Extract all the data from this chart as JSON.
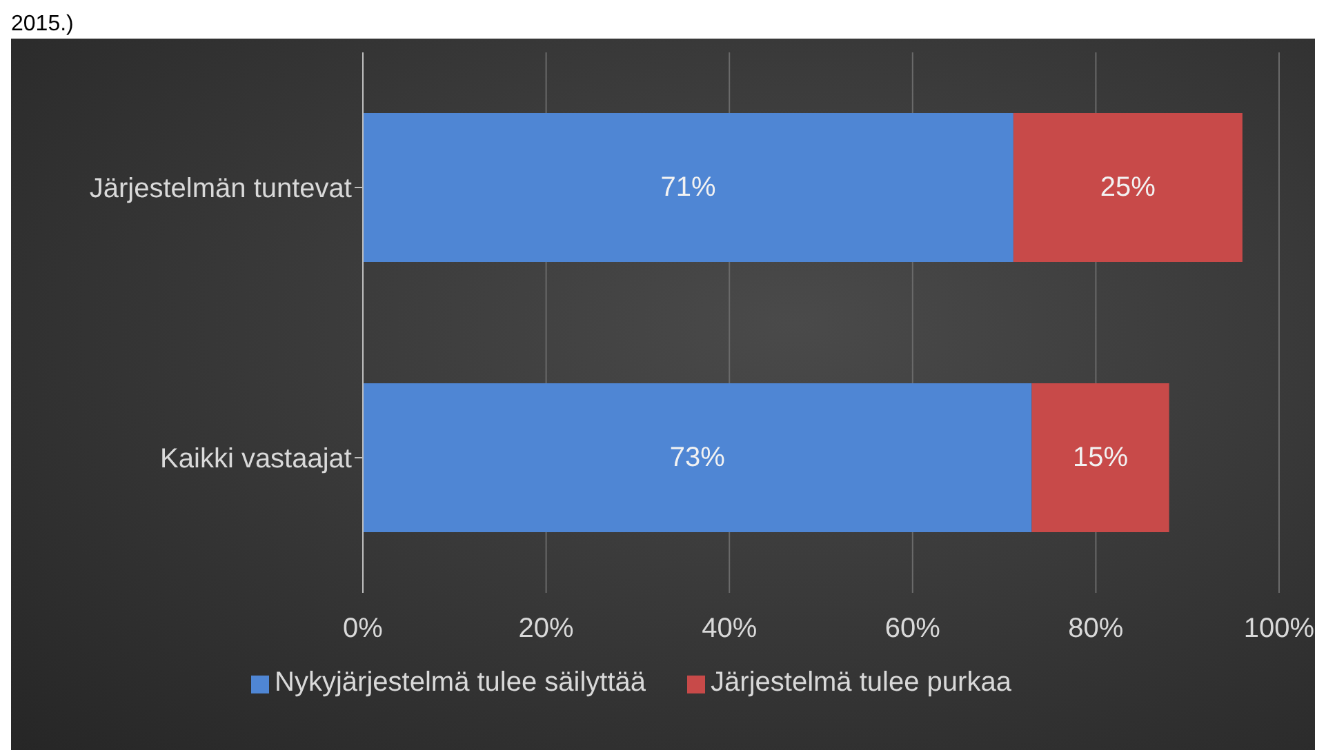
{
  "chart_data": {
    "type": "bar",
    "orientation": "horizontal",
    "stacked": true,
    "categories": [
      "Järjestelmän tuntevat",
      "Kaikki vastaajat"
    ],
    "series": [
      {
        "name": "Nykyjärjestelmä tulee säilyttää",
        "color": "#4f86d4",
        "values": [
          71,
          73
        ],
        "value_labels": [
          "71%",
          "73%"
        ]
      },
      {
        "name": "Järjestelmä tulee purkaa",
        "color": "#c84a49",
        "values": [
          25,
          15
        ],
        "value_labels": [
          "25%",
          "15%"
        ]
      }
    ],
    "xlim": [
      0,
      100
    ],
    "xticks": [
      {
        "value": 0,
        "label": "0%"
      },
      {
        "value": 20,
        "label": "20%"
      },
      {
        "value": 40,
        "label": "40%"
      },
      {
        "value": 60,
        "label": "60%"
      },
      {
        "value": 80,
        "label": "80%"
      },
      {
        "value": 100,
        "label": "100%"
      }
    ],
    "grid": "x",
    "legend": "bottom",
    "annotations": [
      "2015.)"
    ]
  }
}
